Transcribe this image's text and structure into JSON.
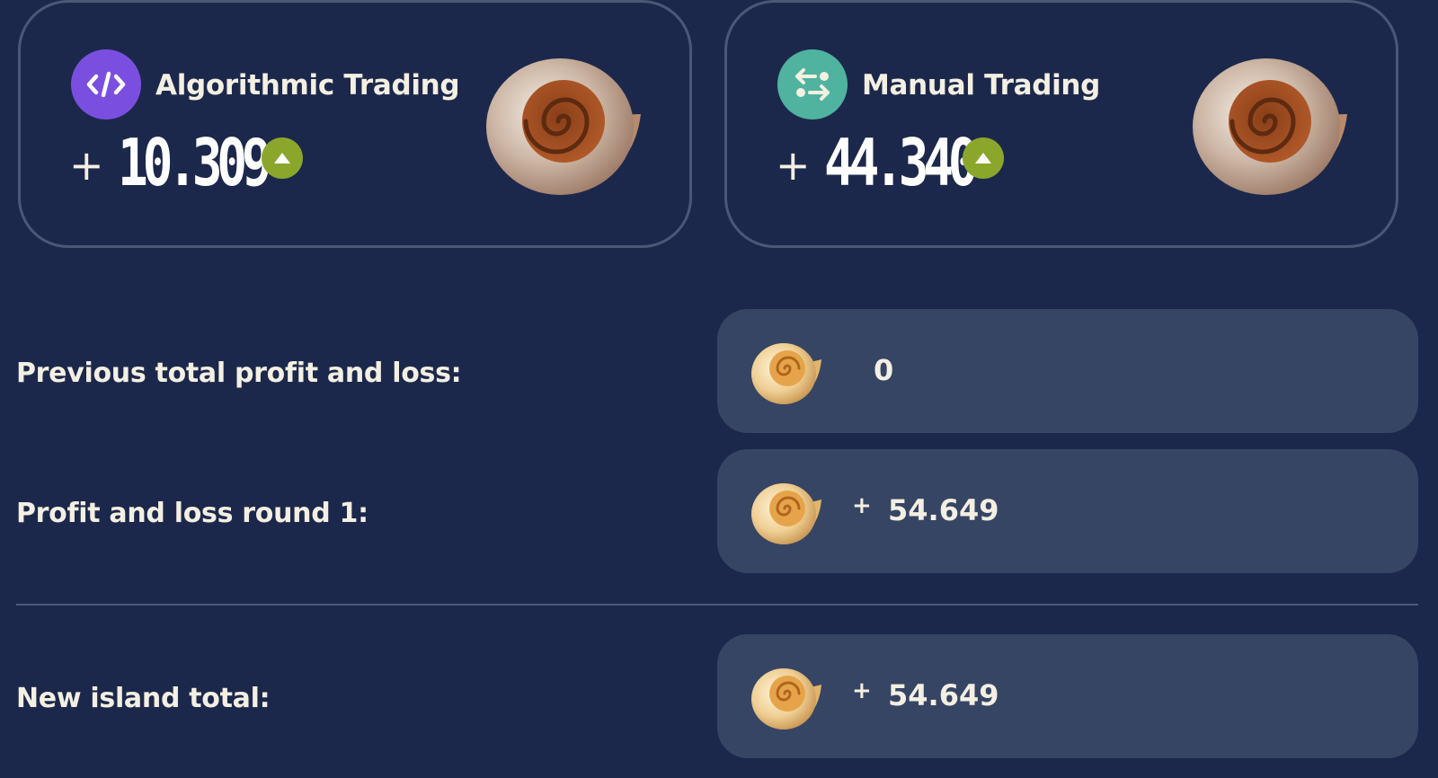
{
  "cards": [
    {
      "title": "Algorithmic Trading",
      "sign": "+",
      "value": "10.309",
      "icon": "code-icon",
      "icon_color": "#7a4fe0",
      "trend": "up",
      "trend_color": "#8aa72c"
    },
    {
      "title": "Manual Trading",
      "sign": "+",
      "value": "44.340",
      "icon": "swap-arrows-icon",
      "icon_color": "#4fb3a0",
      "trend": "up",
      "trend_color": "#8aa72c"
    }
  ],
  "rows": [
    {
      "label": "Previous total profit and loss:",
      "sign": "",
      "value": "0"
    },
    {
      "label": "Profit and loss round 1:",
      "sign": "+",
      "value": "54.649"
    },
    {
      "label": "New island total:",
      "sign": "+",
      "value": "54.649"
    }
  ],
  "colors": {
    "background": "#1c284b",
    "box": "#374564",
    "border": "#4a5878"
  }
}
